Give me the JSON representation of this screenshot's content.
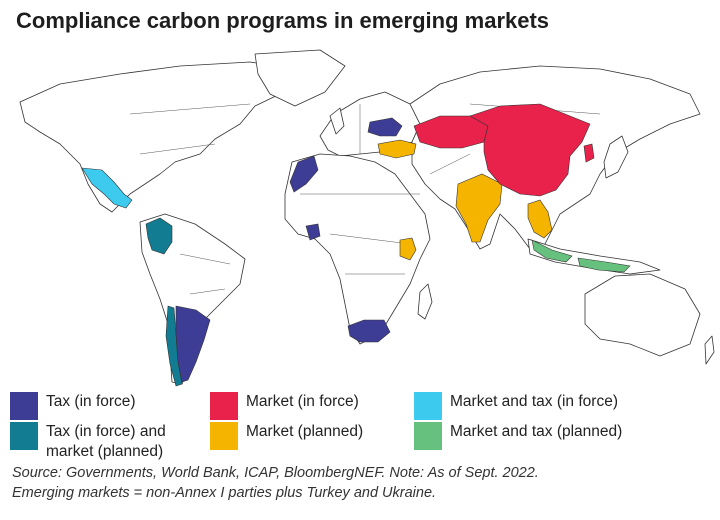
{
  "title": "Compliance carbon programs in emerging markets",
  "colors": {
    "tax_in_force": "#3e3d95",
    "tax_market_planned": "#127d92",
    "market_in_force": "#e8224b",
    "market_planned": "#f4b400",
    "market_tax_in_force": "#3ccbee",
    "market_tax_planned": "#66c17f"
  },
  "legend": [
    {
      "label": "Tax (in force)",
      "color": "#3e3d95"
    },
    {
      "label": "Tax (in force) and market (planned)",
      "color": "#127d92"
    },
    {
      "label": "Market (in force)",
      "color": "#e8224b"
    },
    {
      "label": "Market (planned)",
      "color": "#f4b400"
    },
    {
      "label": "Market and tax (in force)",
      "color": "#3ccbee"
    },
    {
      "label": "Market and tax (planned)",
      "color": "#66c17f"
    }
  ],
  "source": {
    "line1": "Source: Governments, World Bank, ICAP, BloombergNEF. Note: As of Sept. 2022.",
    "line2": "Emerging markets = non-Annex I parties plus Turkey and Ukraine."
  }
}
